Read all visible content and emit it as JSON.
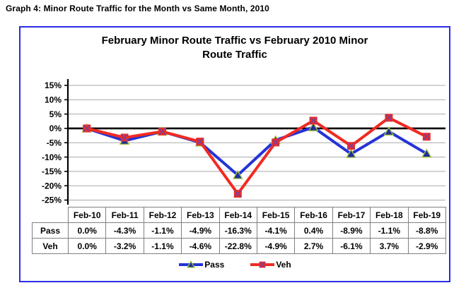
{
  "page": {
    "heading": "Graph 4: Minor Route Traffic for the Month vs Same Month, 2010"
  },
  "chart": {
    "title_lines": [
      "February Minor Route Traffic vs February 2010 Minor",
      "Route Traffic"
    ],
    "frame_color": "#2b2be6"
  },
  "chart_data": {
    "type": "line",
    "title": "February Minor Route Traffic vs February 2010 Minor Route Traffic",
    "categories": [
      "Feb-10",
      "Feb-11",
      "Feb-12",
      "Feb-13",
      "Feb-14",
      "Feb-15",
      "Feb-16",
      "Feb-17",
      "Feb-18",
      "Feb-19"
    ],
    "series": [
      {
        "name": "Pass",
        "color": "#2433d6",
        "marker": "triangle",
        "marker_fill": "#1f3099",
        "marker_edge": "#a3c53a",
        "values": [
          0.0,
          -4.3,
          -1.1,
          -4.9,
          -16.3,
          -4.1,
          0.4,
          -8.9,
          -1.1,
          -8.8
        ],
        "labels": [
          "0.0%",
          "-4.3%",
          "-1.1%",
          "-4.9%",
          "-16.3%",
          "-4.1%",
          "0.4%",
          "-8.9%",
          "-1.1%",
          "-8.8%"
        ]
      },
      {
        "name": "Veh",
        "color": "#f02b22",
        "marker": "x-square",
        "marker_fill": "#f02b22",
        "marker_edge": "#7e3f98",
        "values": [
          0.0,
          -3.2,
          -1.1,
          -4.6,
          -22.8,
          -4.9,
          2.7,
          -6.1,
          3.7,
          -2.9
        ],
        "labels": [
          "0.0%",
          "-3.2%",
          "-1.1%",
          "-4.6%",
          "-22.8%",
          "-4.9%",
          "2.7%",
          "-6.1%",
          "3.7%",
          "-2.9%"
        ]
      }
    ],
    "ylim": [
      -25,
      15
    ],
    "ytick_step": 5,
    "ytick_labels": [
      "15%",
      "10%",
      "5%",
      "0%",
      "-5%",
      "-10%",
      "-15%",
      "-20%",
      "-25%"
    ],
    "grid": true,
    "zero_line_bold": true,
    "gridline_color": "#a8a8a8",
    "axis_color": "#000000",
    "table_border_color": "#808080",
    "legend_position": "bottom",
    "data_table_shown": true
  }
}
